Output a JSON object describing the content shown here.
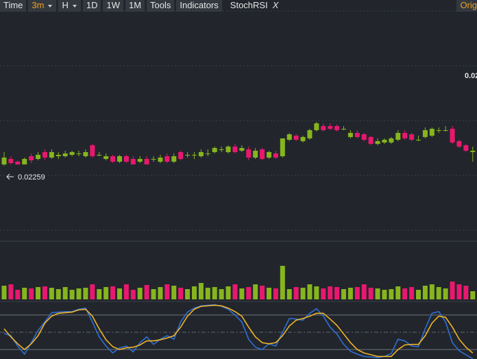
{
  "toolbar": {
    "items": [
      "Time",
      "3m",
      "H",
      "1D",
      "1W",
      "1M",
      "Tools",
      "Indicators"
    ],
    "indicator": "StochRSI",
    "close": "X",
    "right": "Orig"
  },
  "chart_data": [
    {
      "type": "candlestick",
      "up_color": "#86b51e",
      "down_color": "#e8186f",
      "ylim": [
        0.02205,
        0.02371
      ],
      "grid_levels": [
        0.02212,
        0.02252,
        0.02292,
        0.02332,
        0.02372
      ],
      "low_label": "0.02259",
      "price_label": "0.02",
      "open": [
        0.0226,
        0.02264,
        0.02262,
        0.0226,
        0.02266,
        0.02264,
        0.02269,
        0.02265,
        0.02266,
        0.02266,
        0.02267,
        0.02268,
        0.02266,
        0.02274,
        0.02267,
        0.02264,
        0.02266,
        0.02262,
        0.02266,
        0.02264,
        0.02262,
        0.02264,
        0.02264,
        0.02262,
        0.02266,
        0.02262,
        0.02269,
        0.02267,
        0.02267,
        0.02266,
        0.02268,
        0.02269,
        0.02271,
        0.02269,
        0.02273,
        0.0227,
        0.02271,
        0.02265,
        0.02271,
        0.02265,
        0.02268,
        0.02266,
        0.02278,
        0.02281,
        0.02277,
        0.02279,
        0.02285,
        0.02288,
        0.02288,
        0.02288,
        0.02286,
        0.0228,
        0.02283,
        0.02282,
        0.0228,
        0.02275,
        0.02276,
        0.02276,
        0.02278,
        0.02283,
        0.02282,
        0.02278,
        0.0228,
        0.02281,
        0.02285,
        0.02285,
        0.02286,
        0.02277,
        0.02274,
        0.02269
      ],
      "high": [
        0.02269,
        0.02266,
        0.02263,
        0.02265,
        0.02268,
        0.02269,
        0.02271,
        0.02271,
        0.02269,
        0.0227,
        0.0227,
        0.0227,
        0.02271,
        0.02275,
        0.02269,
        0.02268,
        0.02267,
        0.02267,
        0.02267,
        0.02266,
        0.02266,
        0.02266,
        0.02266,
        0.02267,
        0.02268,
        0.02268,
        0.0227,
        0.02269,
        0.02269,
        0.02271,
        0.02271,
        0.02273,
        0.02273,
        0.02274,
        0.02275,
        0.02274,
        0.02273,
        0.02272,
        0.02272,
        0.0227,
        0.0227,
        0.02279,
        0.02283,
        0.02282,
        0.02281,
        0.02286,
        0.02291,
        0.0229,
        0.0229,
        0.02289,
        0.02288,
        0.02285,
        0.02285,
        0.02283,
        0.02281,
        0.02279,
        0.02279,
        0.0228,
        0.02285,
        0.02285,
        0.02283,
        0.02281,
        0.02287,
        0.02287,
        0.02287,
        0.02288,
        0.02288,
        0.02278,
        0.02275,
        0.02273
      ],
      "low": [
        0.02259,
        0.0226,
        0.0226,
        0.0226,
        0.02261,
        0.02263,
        0.02263,
        0.02264,
        0.02264,
        0.02265,
        0.02266,
        0.02266,
        0.02265,
        0.02265,
        0.02266,
        0.02263,
        0.02261,
        0.02261,
        0.02261,
        0.0226,
        0.02261,
        0.0226,
        0.02262,
        0.02261,
        0.02261,
        0.02261,
        0.02263,
        0.02265,
        0.02264,
        0.02265,
        0.02266,
        0.02268,
        0.02269,
        0.02268,
        0.02268,
        0.02269,
        0.02263,
        0.02264,
        0.02263,
        0.02264,
        0.02264,
        0.02265,
        0.02277,
        0.02277,
        0.02276,
        0.02278,
        0.02284,
        0.02284,
        0.02285,
        0.02284,
        0.02285,
        0.02279,
        0.02279,
        0.02277,
        0.02274,
        0.02274,
        0.02275,
        0.02275,
        0.02277,
        0.02278,
        0.02277,
        0.02277,
        0.02279,
        0.0228,
        0.02283,
        0.02284,
        0.02275,
        0.02272,
        0.02269,
        0.02262
      ],
      "close": [
        0.02265,
        0.02261,
        0.0226,
        0.02264,
        0.02263,
        0.02267,
        0.02265,
        0.02269,
        0.02267,
        0.02268,
        0.02269,
        0.02268,
        0.02269,
        0.02266,
        0.02267,
        0.02266,
        0.02262,
        0.02266,
        0.02262,
        0.0226,
        0.02264,
        0.0226,
        0.02264,
        0.02265,
        0.02262,
        0.02266,
        0.02264,
        0.02267,
        0.02267,
        0.02269,
        0.02268,
        0.02272,
        0.02271,
        0.02273,
        0.02269,
        0.02272,
        0.02265,
        0.0227,
        0.02264,
        0.02269,
        0.02265,
        0.02279,
        0.02282,
        0.02278,
        0.0228,
        0.02285,
        0.0229,
        0.02285,
        0.02286,
        0.02285,
        0.02286,
        0.02283,
        0.0228,
        0.02278,
        0.02275,
        0.02277,
        0.02278,
        0.02279,
        0.02283,
        0.02279,
        0.02278,
        0.02278,
        0.02285,
        0.02286,
        0.02285,
        0.02285,
        0.02276,
        0.02273,
        0.0227,
        0.0227
      ]
    },
    {
      "type": "bar",
      "up_color": "#86b51e",
      "down_color": "#e8186f",
      "ylim": [
        0,
        60
      ],
      "values": [
        20,
        22,
        14,
        17,
        16,
        18,
        19,
        17,
        15,
        18,
        14,
        16,
        17,
        22,
        15,
        18,
        19,
        16,
        22,
        14,
        17,
        21,
        15,
        18,
        22,
        20,
        17,
        15,
        19,
        24,
        17,
        18,
        15,
        19,
        22,
        16,
        18,
        22,
        20,
        17,
        16,
        49,
        15,
        18,
        17,
        22,
        19,
        16,
        19,
        18,
        15,
        17,
        18,
        22,
        17,
        16,
        14,
        15,
        19,
        16,
        18,
        14,
        20,
        22,
        18,
        16,
        26,
        22,
        20,
        12
      ]
    },
    {
      "type": "line",
      "ylim": [
        0,
        100
      ],
      "levels": [
        80,
        50,
        20
      ],
      "series": [
        {
          "color": "#2f6fd6",
          "values": [
            48,
            44,
            26,
            12,
            32,
            53,
            68,
            84,
            85,
            86,
            86,
            90,
            92,
            68,
            42,
            26,
            14,
            23,
            26,
            16,
            32,
            42,
            29,
            38,
            44,
            38,
            68,
            85,
            92,
            96,
            97,
            98,
            95,
            90,
            80,
            68,
            38,
            24,
            20,
            30,
            26,
            50,
            74,
            73,
            71,
            83,
            91,
            78,
            59,
            47,
            29,
            17,
            12,
            8,
            7,
            6,
            8,
            13,
            38,
            35,
            26,
            25,
            56,
            83,
            86,
            68,
            32,
            18,
            11,
            4
          ]
        },
        {
          "color": "#f0b429",
          "values": [
            56,
            42,
            30,
            20,
            30,
            44,
            66,
            78,
            83,
            84,
            85,
            89,
            90,
            78,
            56,
            37,
            25,
            20,
            23,
            24,
            28,
            35,
            35,
            37,
            40,
            44,
            59,
            78,
            90,
            95,
            96,
            97,
            96,
            92,
            86,
            78,
            59,
            42,
            32,
            30,
            32,
            44,
            61,
            71,
            74,
            78,
            83,
            83,
            73,
            62,
            47,
            32,
            20,
            14,
            11,
            8,
            8,
            8,
            20,
            28,
            29,
            29,
            44,
            66,
            78,
            76,
            59,
            38,
            24,
            14
          ]
        }
      ]
    }
  ]
}
